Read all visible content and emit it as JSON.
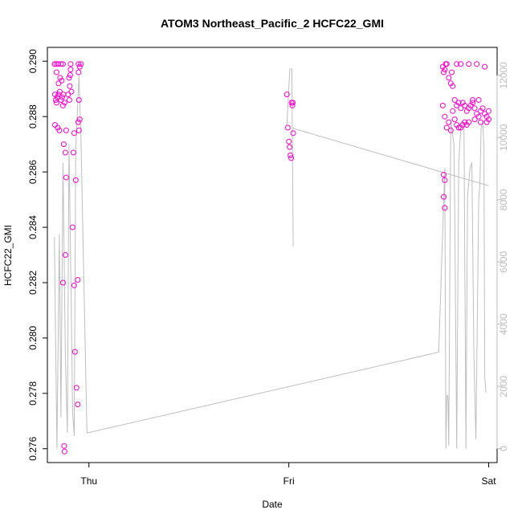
{
  "chart_data": {
    "type": "scatter",
    "title": "ATOM3 Northeast_Pacific_2 HCFC22_GMI",
    "xlabel": "Date",
    "ylabel": "HCFC22_GMI",
    "x_ticks": [
      {
        "label": "Thu",
        "x": 0
      },
      {
        "label": "Fri",
        "x": 1
      },
      {
        "label": "Sat",
        "x": 2
      }
    ],
    "xlim": [
      -0.208,
      2.042
    ],
    "ylim": [
      0.2755,
      0.2905
    ],
    "y_ticks": [
      0.276,
      0.278,
      0.28,
      0.282,
      0.284,
      0.286,
      0.288,
      0.29
    ],
    "y2lim": [
      -450,
      12900
    ],
    "y2_ticks": [
      0,
      2000,
      4000,
      6000,
      8000,
      10000,
      12000
    ],
    "grid": false,
    "colors": {
      "points": "#ff00cc",
      "altitude_line": "#bebebe",
      "right_axis": "#bdbdbd"
    },
    "series": [
      {
        "role": "scatter-left-axis",
        "points": [
          [
            -0.172,
            0.2899
          ],
          [
            -0.164,
            0.2899
          ],
          [
            -0.155,
            0.2899
          ],
          [
            -0.14,
            0.2899
          ],
          [
            -0.13,
            0.2899
          ],
          [
            -0.17,
            0.2888
          ],
          [
            -0.166,
            0.2886
          ],
          [
            -0.162,
            0.2885
          ],
          [
            -0.158,
            0.2887
          ],
          [
            -0.152,
            0.2888
          ],
          [
            -0.146,
            0.2889
          ],
          [
            -0.14,
            0.2886
          ],
          [
            -0.134,
            0.2887
          ],
          [
            -0.128,
            0.2888
          ],
          [
            -0.122,
            0.2885
          ],
          [
            -0.162,
            0.2896
          ],
          [
            -0.152,
            0.2892
          ],
          [
            -0.144,
            0.2894
          ],
          [
            -0.136,
            0.2893
          ],
          [
            -0.13,
            0.2884
          ],
          [
            -0.17,
            0.2877
          ],
          [
            -0.156,
            0.2876
          ],
          [
            -0.148,
            0.2875
          ],
          [
            -0.126,
            0.287
          ],
          [
            -0.118,
            0.2867
          ],
          [
            -0.114,
            0.2858
          ],
          [
            -0.118,
            0.283
          ],
          [
            -0.13,
            0.282
          ],
          [
            -0.124,
            0.2761
          ],
          [
            -0.122,
            0.2759
          ],
          [
            -0.114,
            0.2875
          ],
          [
            -0.104,
            0.2888
          ],
          [
            -0.1,
            0.2894
          ],
          [
            -0.094,
            0.2895
          ],
          [
            -0.092,
            0.2897
          ],
          [
            -0.096,
            0.2891
          ],
          [
            -0.098,
            0.2886
          ],
          [
            -0.088,
            0.2889
          ],
          [
            -0.092,
            0.2899
          ],
          [
            -0.074,
            0.2874
          ],
          [
            -0.078,
            0.2867
          ],
          [
            -0.066,
            0.2857
          ],
          [
            -0.082,
            0.284
          ],
          [
            -0.074,
            0.2819
          ],
          [
            -0.056,
            0.2821
          ],
          [
            -0.07,
            0.2795
          ],
          [
            -0.062,
            0.2782
          ],
          [
            -0.056,
            0.2776
          ],
          [
            -0.052,
            0.2899
          ],
          [
            -0.046,
            0.2898
          ],
          [
            -0.04,
            0.2899
          ],
          [
            -0.052,
            0.2896
          ],
          [
            -0.05,
            0.2886
          ],
          [
            -0.054,
            0.2878
          ],
          [
            -0.046,
            0.2879
          ],
          [
            -0.05,
            0.2875
          ],
          [
            0.99,
            0.2888
          ],
          [
            0.995,
            0.2876
          ],
          [
            1.0,
            0.2871
          ],
          [
            1.004,
            0.2869
          ],
          [
            1.008,
            0.2866
          ],
          [
            1.012,
            0.2865
          ],
          [
            1.014,
            0.2885
          ],
          [
            1.018,
            0.2884
          ],
          [
            1.02,
            0.2885
          ],
          [
            1.022,
            0.2874
          ],
          [
            1.77,
            0.2898
          ],
          [
            1.775,
            0.2896
          ],
          [
            1.78,
            0.2897
          ],
          [
            1.785,
            0.2899
          ],
          [
            1.79,
            0.2899
          ],
          [
            1.8,
            0.2894
          ],
          [
            1.81,
            0.2892
          ],
          [
            1.815,
            0.2896
          ],
          [
            1.82,
            0.2891
          ],
          [
            1.84,
            0.2899
          ],
          [
            1.86,
            0.2899
          ],
          [
            1.9,
            0.2899
          ],
          [
            1.94,
            0.2899
          ],
          [
            1.98,
            0.2898
          ],
          [
            1.77,
            0.2884
          ],
          [
            1.78,
            0.288
          ],
          [
            1.79,
            0.2876
          ],
          [
            1.8,
            0.2878
          ],
          [
            1.81,
            0.2875
          ],
          [
            1.82,
            0.2882
          ],
          [
            1.83,
            0.2879
          ],
          [
            1.84,
            0.2877
          ],
          [
            1.85,
            0.2876
          ],
          [
            1.86,
            0.2876
          ],
          [
            1.87,
            0.2877
          ],
          [
            1.88,
            0.2878
          ],
          [
            1.89,
            0.2877
          ],
          [
            1.83,
            0.2886
          ],
          [
            1.84,
            0.2884
          ],
          [
            1.85,
            0.2885
          ],
          [
            1.86,
            0.2883
          ],
          [
            1.87,
            0.2885
          ],
          [
            1.88,
            0.2884
          ],
          [
            1.89,
            0.2882
          ],
          [
            1.9,
            0.2883
          ],
          [
            1.91,
            0.2884
          ],
          [
            1.92,
            0.2885
          ],
          [
            1.93,
            0.2883
          ],
          [
            1.94,
            0.2881
          ],
          [
            1.95,
            0.288
          ],
          [
            1.96,
            0.2882
          ],
          [
            1.97,
            0.2883
          ],
          [
            1.98,
            0.2881
          ],
          [
            1.99,
            0.288
          ],
          [
            2.0,
            0.2882
          ],
          [
            1.9,
            0.2878
          ],
          [
            1.93,
            0.2879
          ],
          [
            1.96,
            0.2878
          ],
          [
            1.99,
            0.2878
          ],
          [
            2.0,
            0.2879
          ],
          [
            1.95,
            0.2886
          ],
          [
            1.92,
            0.2886
          ],
          [
            1.775,
            0.2859
          ],
          [
            1.78,
            0.2857
          ],
          [
            1.775,
            0.2851
          ],
          [
            1.78,
            0.2847
          ]
        ]
      },
      {
        "role": "line-right-axis",
        "points": [
          [
            -0.173,
            6800
          ],
          [
            -0.16,
            0
          ],
          [
            -0.148,
            6900
          ],
          [
            -0.14,
            1000
          ],
          [
            -0.13,
            9200
          ],
          [
            -0.118,
            3000
          ],
          [
            -0.108,
            500
          ],
          [
            -0.1,
            9800
          ],
          [
            -0.09,
            5200
          ],
          [
            -0.082,
            1200
          ],
          [
            -0.074,
            400
          ],
          [
            -0.066,
            9600
          ],
          [
            -0.05,
            12000
          ],
          [
            -0.04,
            10000
          ],
          [
            -0.01,
            500
          ],
          [
            1.75,
            3100
          ],
          [
            1.78,
            9000
          ],
          [
            1.786,
            0
          ],
          [
            1.79,
            1700
          ],
          [
            1.796,
            1700
          ],
          [
            1.8,
            100
          ],
          [
            1.81,
            10500
          ],
          [
            1.826,
            9800
          ],
          [
            1.83,
            7800
          ],
          [
            1.84,
            0
          ],
          [
            1.85,
            9200
          ],
          [
            1.862,
            10500
          ],
          [
            1.876,
            10500
          ],
          [
            1.886,
            0
          ],
          [
            1.894,
            8100
          ],
          [
            1.906,
            9000
          ],
          [
            1.916,
            9200
          ],
          [
            1.926,
            3000
          ],
          [
            1.936,
            300
          ],
          [
            1.95,
            8000
          ],
          [
            1.956,
            8500
          ],
          [
            1.962,
            10300
          ],
          [
            1.97,
            10500
          ],
          [
            1.976,
            9700
          ],
          [
            1.98,
            2300
          ],
          [
            1.986,
            1800
          ]
        ],
        "segment_2": [
          [
            0.99,
            10400
          ],
          [
            1.005,
            12200
          ],
          [
            1.015,
            12200
          ],
          [
            1.022,
            6500
          ]
        ],
        "segment_3": [
          [
            1.02,
            10300
          ],
          [
            2.0,
            8450
          ]
        ]
      }
    ]
  }
}
